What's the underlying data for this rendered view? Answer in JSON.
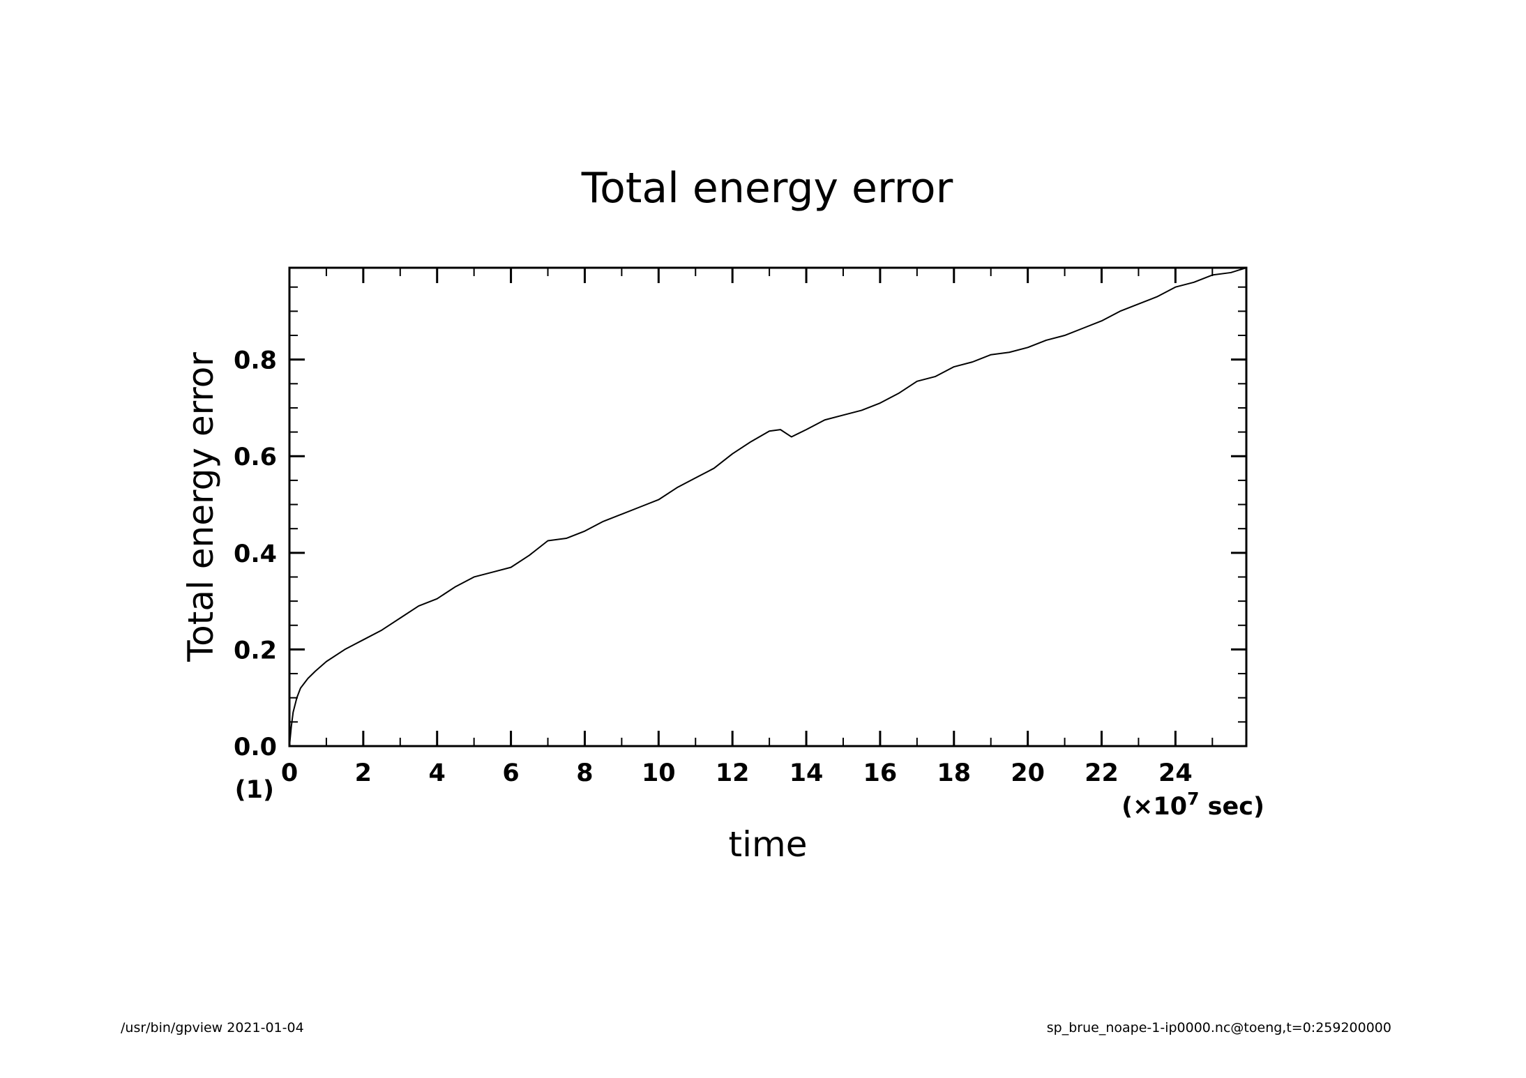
{
  "chart_data": {
    "type": "line",
    "title": "Total energy error",
    "xlabel": "time",
    "ylabel": "Total energy error",
    "x_unit_note": "(×10",
    "x_unit_exp": "7",
    "x_unit_tail": " sec)",
    "y_scale_note": "(1)",
    "xlim": [
      0,
      25.92
    ],
    "ylim": [
      0,
      0.99
    ],
    "x_ticks": [
      0,
      2,
      4,
      6,
      8,
      10,
      12,
      14,
      16,
      18,
      20,
      22,
      24
    ],
    "x_tick_labels": [
      "0",
      "2",
      "4",
      "6",
      "8",
      "10",
      "12",
      "14",
      "16",
      "18",
      "20",
      "22",
      "24"
    ],
    "y_ticks": [
      0.0,
      0.2,
      0.4,
      0.6,
      0.8
    ],
    "y_tick_labels": [
      "0.0",
      "0.2",
      "0.4",
      "0.6",
      "0.8"
    ],
    "grid": false,
    "legend": "none",
    "line_color": "#000000",
    "series": [
      {
        "x": [
          0,
          0.05,
          0.1,
          0.2,
          0.3,
          0.5,
          0.7,
          1.0,
          1.5,
          2.0,
          2.5,
          3.0,
          3.5,
          4.0,
          4.5,
          5.0,
          5.5,
          6.0,
          6.5,
          7.0,
          7.5,
          8.0,
          8.5,
          9.0,
          9.5,
          10.0,
          10.5,
          11.0,
          11.5,
          12.0,
          12.5,
          13.0,
          13.3,
          13.6,
          14.0,
          14.5,
          15.0,
          15.5,
          16.0,
          16.5,
          17.0,
          17.5,
          18.0,
          18.5,
          19.0,
          19.5,
          20.0,
          20.5,
          21.0,
          21.5,
          22.0,
          22.5,
          23.0,
          23.5,
          24.0,
          24.5,
          25.0,
          25.5,
          25.92
        ],
        "y": [
          0.0,
          0.04,
          0.07,
          0.1,
          0.12,
          0.14,
          0.155,
          0.175,
          0.2,
          0.22,
          0.24,
          0.265,
          0.29,
          0.305,
          0.33,
          0.35,
          0.36,
          0.37,
          0.395,
          0.425,
          0.43,
          0.445,
          0.465,
          0.48,
          0.495,
          0.51,
          0.535,
          0.555,
          0.575,
          0.605,
          0.63,
          0.652,
          0.655,
          0.64,
          0.655,
          0.675,
          0.685,
          0.695,
          0.71,
          0.73,
          0.755,
          0.765,
          0.785,
          0.795,
          0.81,
          0.815,
          0.825,
          0.84,
          0.85,
          0.865,
          0.88,
          0.9,
          0.915,
          0.93,
          0.95,
          0.96,
          0.975,
          0.98,
          0.99
        ]
      }
    ]
  },
  "footer": {
    "left": "/usr/bin/gpview   2021-01-04",
    "right": "sp_brue_noape-1-ip0000.nc@toeng,t=0:259200000"
  }
}
